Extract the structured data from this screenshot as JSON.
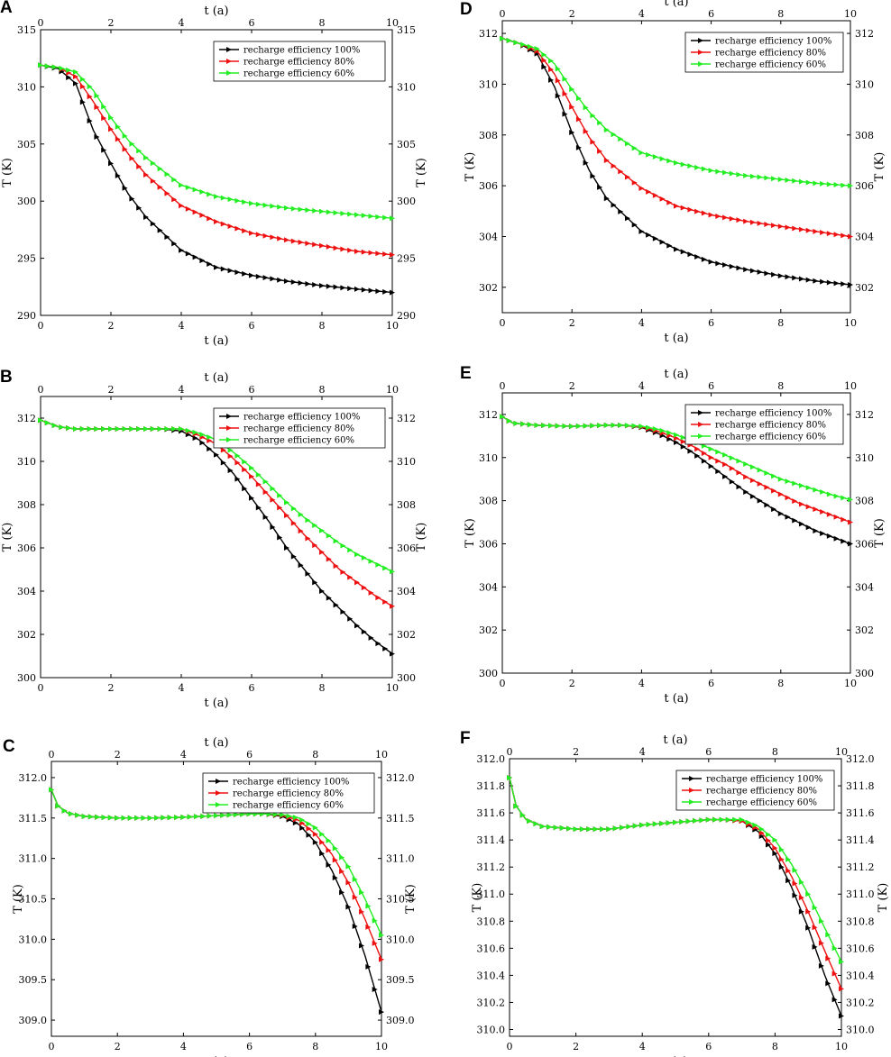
{
  "series_colors": [
    "#000000",
    "#ee1111",
    "#22ee22"
  ],
  "chart_data": [
    {
      "type": "line",
      "panel": "A",
      "xlabel": "t (a)",
      "ylabel": "T (K)",
      "xlabel_top": "t (a)",
      "ylabel_right": "T (K)",
      "xlim": [
        0,
        10
      ],
      "ylim": [
        290,
        315
      ],
      "xticks": [
        "0",
        "2",
        "4",
        "6",
        "8",
        "10"
      ],
      "yticks": [
        "290",
        "295",
        "300",
        "305",
        "310",
        "315"
      ],
      "legend": "top-right",
      "grid": false,
      "x": [
        0,
        0.5,
        1,
        1.5,
        2,
        2.5,
        3,
        4,
        5,
        6,
        7,
        8,
        9,
        10
      ],
      "series": [
        {
          "name": "recharge efficiency 100%",
          "values": [
            311.9,
            311.6,
            310.3,
            306.2,
            303.3,
            300.6,
            298.6,
            295.7,
            294.2,
            293.5,
            293.0,
            292.6,
            292.3,
            292.0
          ]
        },
        {
          "name": "recharge efficiency 80%",
          "values": [
            311.9,
            311.7,
            310.9,
            308.7,
            306.3,
            304.1,
            302.3,
            299.6,
            298.2,
            297.2,
            296.6,
            296.1,
            295.6,
            295.3
          ]
        },
        {
          "name": "recharge efficiency 60%",
          "values": [
            311.9,
            311.7,
            311.3,
            309.7,
            307.3,
            305.3,
            303.8,
            301.4,
            300.4,
            299.8,
            299.4,
            299.1,
            298.8,
            298.5
          ]
        }
      ]
    },
    {
      "type": "line",
      "panel": "B",
      "xlabel": "t (a)",
      "ylabel": "T (K)",
      "xlabel_top": "t (a)",
      "ylabel_right": "T (K)",
      "xlim": [
        0,
        10
      ],
      "ylim": [
        300,
        313
      ],
      "xticks": [
        "0",
        "2",
        "4",
        "6",
        "8",
        "10"
      ],
      "yticks": [
        "300",
        "302",
        "304",
        "306",
        "308",
        "310",
        "312"
      ],
      "legend": "top-right",
      "grid": false,
      "x": [
        0,
        0.5,
        1,
        2,
        3,
        3.5,
        4,
        4.5,
        5,
        5.5,
        6,
        6.5,
        7,
        7.5,
        8,
        8.5,
        9,
        9.5,
        10
      ],
      "series": [
        {
          "name": "recharge efficiency 100%",
          "values": [
            311.9,
            311.6,
            311.5,
            311.5,
            311.5,
            311.5,
            311.4,
            311.0,
            310.3,
            309.4,
            308.3,
            307.2,
            306.0,
            305.0,
            304.0,
            303.2,
            302.4,
            301.7,
            301.1
          ]
        },
        {
          "name": "recharge efficiency 80%",
          "values": [
            311.9,
            311.6,
            311.5,
            311.5,
            311.5,
            311.5,
            311.5,
            311.2,
            310.8,
            310.1,
            309.3,
            308.4,
            307.5,
            306.6,
            305.8,
            305.0,
            304.4,
            303.8,
            303.3
          ]
        },
        {
          "name": "recharge efficiency 60%",
          "values": [
            311.9,
            311.6,
            311.5,
            311.5,
            311.5,
            311.5,
            311.5,
            311.3,
            311.0,
            310.4,
            309.7,
            308.9,
            308.1,
            307.4,
            306.8,
            306.2,
            305.7,
            305.3,
            304.9
          ]
        }
      ]
    },
    {
      "type": "line",
      "panel": "C",
      "xlabel": "t (a)",
      "ylabel": "T (K)",
      "xlabel_top": "t (a)",
      "ylabel_right": "T (K)",
      "xlim": [
        0,
        10
      ],
      "ylim": [
        308.8,
        312.2
      ],
      "xticks": [
        "0",
        "2",
        "4",
        "6",
        "8",
        "10"
      ],
      "yticks": [
        "309.0",
        "309.5",
        "310.0",
        "310.5",
        "311.0",
        "311.5",
        "312.0"
      ],
      "legend": "top-right",
      "grid": false,
      "x": [
        0,
        0.2,
        0.5,
        1,
        2,
        3,
        4,
        5,
        6,
        6.5,
        7,
        7.5,
        8,
        8.5,
        9,
        9.5,
        10
      ],
      "series": [
        {
          "name": "recharge efficiency 100%",
          "values": [
            311.85,
            311.65,
            311.56,
            311.52,
            311.5,
            311.5,
            311.51,
            311.53,
            311.55,
            311.55,
            311.52,
            311.42,
            311.2,
            310.85,
            310.4,
            309.8,
            309.1
          ]
        },
        {
          "name": "recharge efficiency 80%",
          "values": [
            311.85,
            311.65,
            311.56,
            311.52,
            311.5,
            311.5,
            311.51,
            311.53,
            311.55,
            311.55,
            311.53,
            311.47,
            311.3,
            311.05,
            310.7,
            310.25,
            309.75
          ]
        },
        {
          "name": "recharge efficiency 60%",
          "values": [
            311.85,
            311.65,
            311.56,
            311.52,
            311.5,
            311.5,
            311.51,
            311.53,
            311.55,
            311.55,
            311.54,
            311.5,
            311.38,
            311.18,
            310.9,
            310.5,
            310.05
          ]
        }
      ]
    },
    {
      "type": "line",
      "panel": "D",
      "xlabel": "t (a)",
      "ylabel": "T (K)",
      "xlabel_top": "t (a)",
      "ylabel_right": "T (K)",
      "xlim": [
        0,
        10
      ],
      "ylim": [
        301,
        312.5
      ],
      "xticks": [
        "0",
        "2",
        "4",
        "6",
        "8",
        "10"
      ],
      "yticks": [
        "302",
        "304",
        "306",
        "308",
        "310",
        "312"
      ],
      "legend": "top-right",
      "grid": false,
      "x": [
        0,
        0.5,
        1,
        1.5,
        2,
        2.5,
        3,
        4,
        5,
        6,
        7,
        8,
        9,
        10
      ],
      "series": [
        {
          "name": "recharge efficiency 100%",
          "values": [
            311.8,
            311.6,
            311.2,
            309.9,
            308.1,
            306.6,
            305.5,
            304.2,
            303.5,
            303.0,
            302.7,
            302.45,
            302.25,
            302.1
          ]
        },
        {
          "name": "recharge efficiency 80%",
          "values": [
            311.8,
            311.6,
            311.3,
            310.4,
            309.1,
            307.9,
            307.0,
            305.9,
            305.2,
            304.85,
            304.6,
            304.4,
            304.2,
            304.0
          ]
        },
        {
          "name": "recharge efficiency 60%",
          "values": [
            311.8,
            311.6,
            311.4,
            310.8,
            309.8,
            308.9,
            308.2,
            307.3,
            306.9,
            306.6,
            306.4,
            306.25,
            306.1,
            306.0
          ]
        }
      ]
    },
    {
      "type": "line",
      "panel": "E",
      "xlabel": "t (a)",
      "ylabel": "T (K)",
      "xlabel_top": "t (a)",
      "ylabel_right": "T (K)",
      "xlim": [
        0,
        10
      ],
      "ylim": [
        300,
        313
      ],
      "xticks": [
        "0",
        "2",
        "4",
        "6",
        "8",
        "10"
      ],
      "yticks": [
        "300",
        "302",
        "304",
        "306",
        "308",
        "310",
        "312"
      ],
      "legend": "top-right",
      "grid": false,
      "x": [
        0,
        0.3,
        1,
        2,
        3,
        3.5,
        4,
        4.5,
        5,
        5.5,
        6,
        6.5,
        7,
        7.5,
        8,
        8.5,
        9,
        9.5,
        10
      ],
      "series": [
        {
          "name": "recharge efficiency 100%",
          "values": [
            311.9,
            311.6,
            311.5,
            311.45,
            311.5,
            311.5,
            311.4,
            311.1,
            310.7,
            310.2,
            309.6,
            309.0,
            308.4,
            307.9,
            307.4,
            307.0,
            306.6,
            306.3,
            306.0
          ]
        },
        {
          "name": "recharge efficiency 80%",
          "values": [
            311.9,
            311.6,
            311.5,
            311.45,
            311.5,
            311.5,
            311.42,
            311.2,
            310.9,
            310.5,
            310.0,
            309.6,
            309.1,
            308.7,
            308.3,
            307.9,
            307.6,
            307.3,
            307.0
          ]
        },
        {
          "name": "recharge efficiency 60%",
          "values": [
            311.9,
            311.6,
            311.5,
            311.45,
            311.5,
            311.5,
            311.45,
            311.3,
            311.05,
            310.75,
            310.4,
            310.05,
            309.7,
            309.35,
            309.0,
            308.75,
            308.5,
            308.25,
            308.05
          ]
        }
      ]
    },
    {
      "type": "line",
      "panel": "F",
      "xlabel": "t (a)",
      "ylabel": "T (K)",
      "xlabel_top": "t (a)",
      "ylabel_right": "T (K)",
      "xlim": [
        0,
        10
      ],
      "ylim": [
        309.95,
        312.0
      ],
      "xticks": [
        "0",
        "2",
        "4",
        "6",
        "8",
        "10"
      ],
      "yticks": [
        "310.0",
        "310.2",
        "310.4",
        "310.6",
        "310.8",
        "311.0",
        "311.2",
        "311.4",
        "311.6",
        "311.8",
        "312.0"
      ],
      "legend": "top-right",
      "grid": false,
      "x": [
        0,
        0.2,
        0.5,
        1,
        2,
        3,
        4,
        5,
        6,
        6.5,
        7,
        7.5,
        8,
        8.5,
        9,
        9.5,
        10
      ],
      "series": [
        {
          "name": "recharge efficiency 100%",
          "values": [
            311.86,
            311.65,
            311.55,
            311.5,
            311.48,
            311.48,
            311.51,
            311.53,
            311.55,
            311.55,
            311.54,
            311.46,
            311.3,
            311.05,
            310.75,
            310.4,
            310.1
          ]
        },
        {
          "name": "recharge efficiency 80%",
          "values": [
            311.86,
            311.65,
            311.55,
            311.5,
            311.48,
            311.48,
            311.51,
            311.53,
            311.55,
            311.55,
            311.54,
            311.48,
            311.34,
            311.13,
            310.87,
            310.58,
            310.3
          ]
        },
        {
          "name": "recharge efficiency 60%",
          "values": [
            311.86,
            311.65,
            311.55,
            311.5,
            311.48,
            311.48,
            311.51,
            311.53,
            311.55,
            311.55,
            311.55,
            311.5,
            311.4,
            311.22,
            311.0,
            310.75,
            310.5
          ]
        }
      ]
    }
  ]
}
